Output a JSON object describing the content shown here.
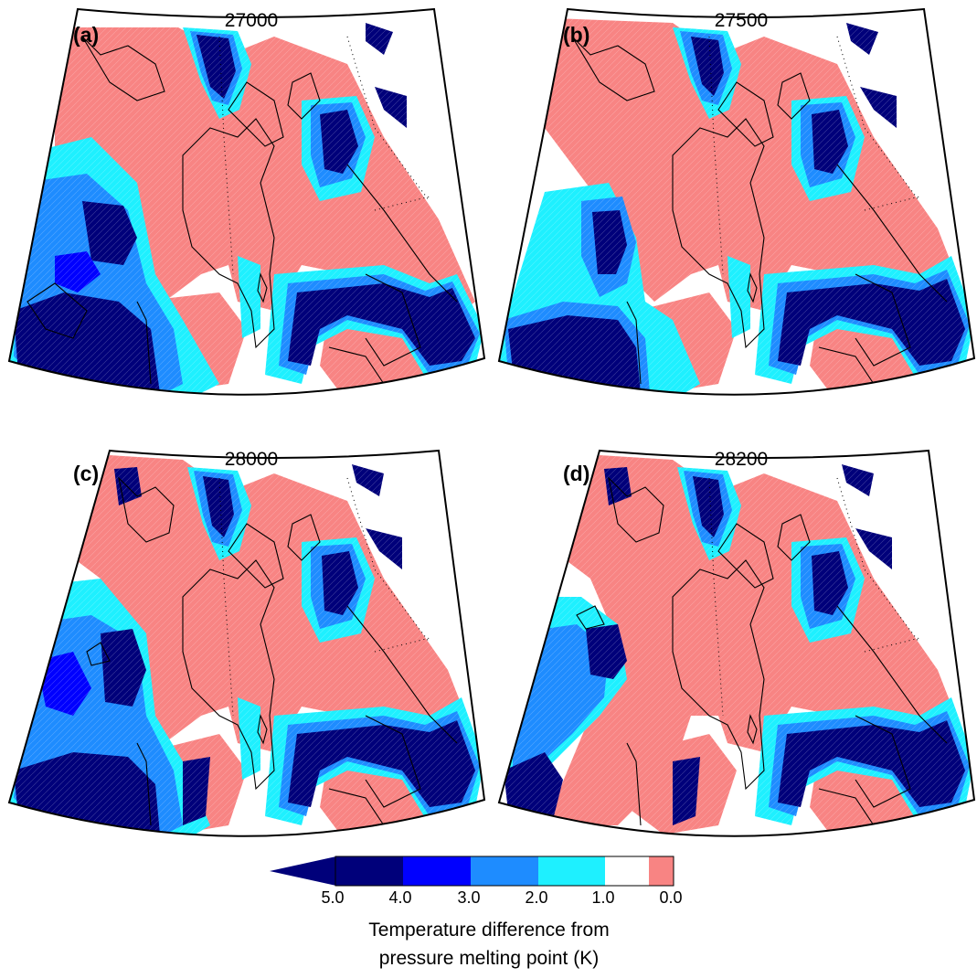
{
  "panels": [
    {
      "letter": "(a)",
      "title": "27000"
    },
    {
      "letter": "(b)",
      "title": "27500"
    },
    {
      "letter": "(c)",
      "title": "28000"
    },
    {
      "letter": "(d)",
      "title": "28200"
    }
  ],
  "legend": {
    "label_line1": "Temperature difference from",
    "label_line2": "pressure melting point (K)",
    "tick_labels": [
      "5.0",
      "4.0",
      "3.0",
      "2.0",
      "1.0",
      "0.0"
    ],
    "bins": [
      {
        "range": "> 5.0",
        "color": "#00007a"
      },
      {
        "range": "4.0–5.0",
        "color": "#00007a"
      },
      {
        "range": "3.0–4.0",
        "color": "#0000ff"
      },
      {
        "range": "2.0–3.0",
        "color": "#1e8cff"
      },
      {
        "range": "1.0–2.0",
        "color": "#1ef0ff"
      },
      {
        "range": "0.0–1.0",
        "color": "#ffffff"
      },
      {
        "range": "0.0",
        "color": "#f88483"
      }
    ]
  },
  "colors": {
    "pressure_melting": "#f88483",
    "coastline": "#000000",
    "frame": "#000000"
  }
}
